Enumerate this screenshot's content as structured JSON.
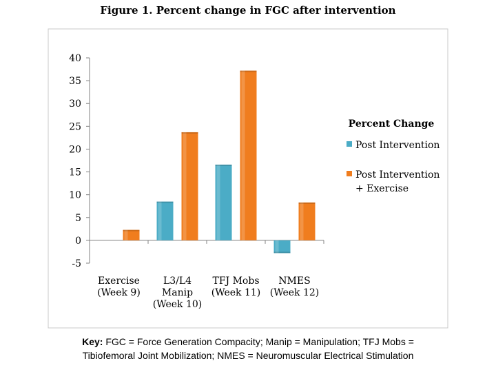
{
  "chart_data": {
    "type": "bar",
    "title": "Figure 1. Percent change in FGC after intervention",
    "categories": [
      [
        "Exercise",
        "(Week 9)"
      ],
      [
        "L3/L4",
        "Manip",
        "(Week 10)"
      ],
      [
        "TFJ Mobs",
        "(Week 11)"
      ],
      [
        "NMES",
        "(Week 12)"
      ]
    ],
    "series": [
      {
        "name": "Post Intervention",
        "values": [
          null,
          8.5,
          16.6,
          -2.8
        ]
      },
      {
        "name_lines": [
          "Post Intervention",
          "+ Exercise"
        ],
        "values": [
          2.3,
          23.7,
          37.2,
          8.3
        ]
      }
    ],
    "ylim": [
      -5,
      40
    ],
    "yticks": [
      -5,
      0,
      5,
      10,
      15,
      20,
      25,
      30,
      35,
      40
    ],
    "legend": {
      "title": "Percent Change",
      "placement": "right"
    },
    "colors": {
      "series1": "#4bacc6",
      "series2": "#f07d1e"
    }
  },
  "key": {
    "label": "Key:",
    "text_line1": "FGC = Force Generation Compacity; Manip = Manipulation; TFJ Mobs =",
    "text_line2": "Tibiofemoral Joint Mobilization; NMES = Neuromuscular Electrical Stimulation"
  }
}
